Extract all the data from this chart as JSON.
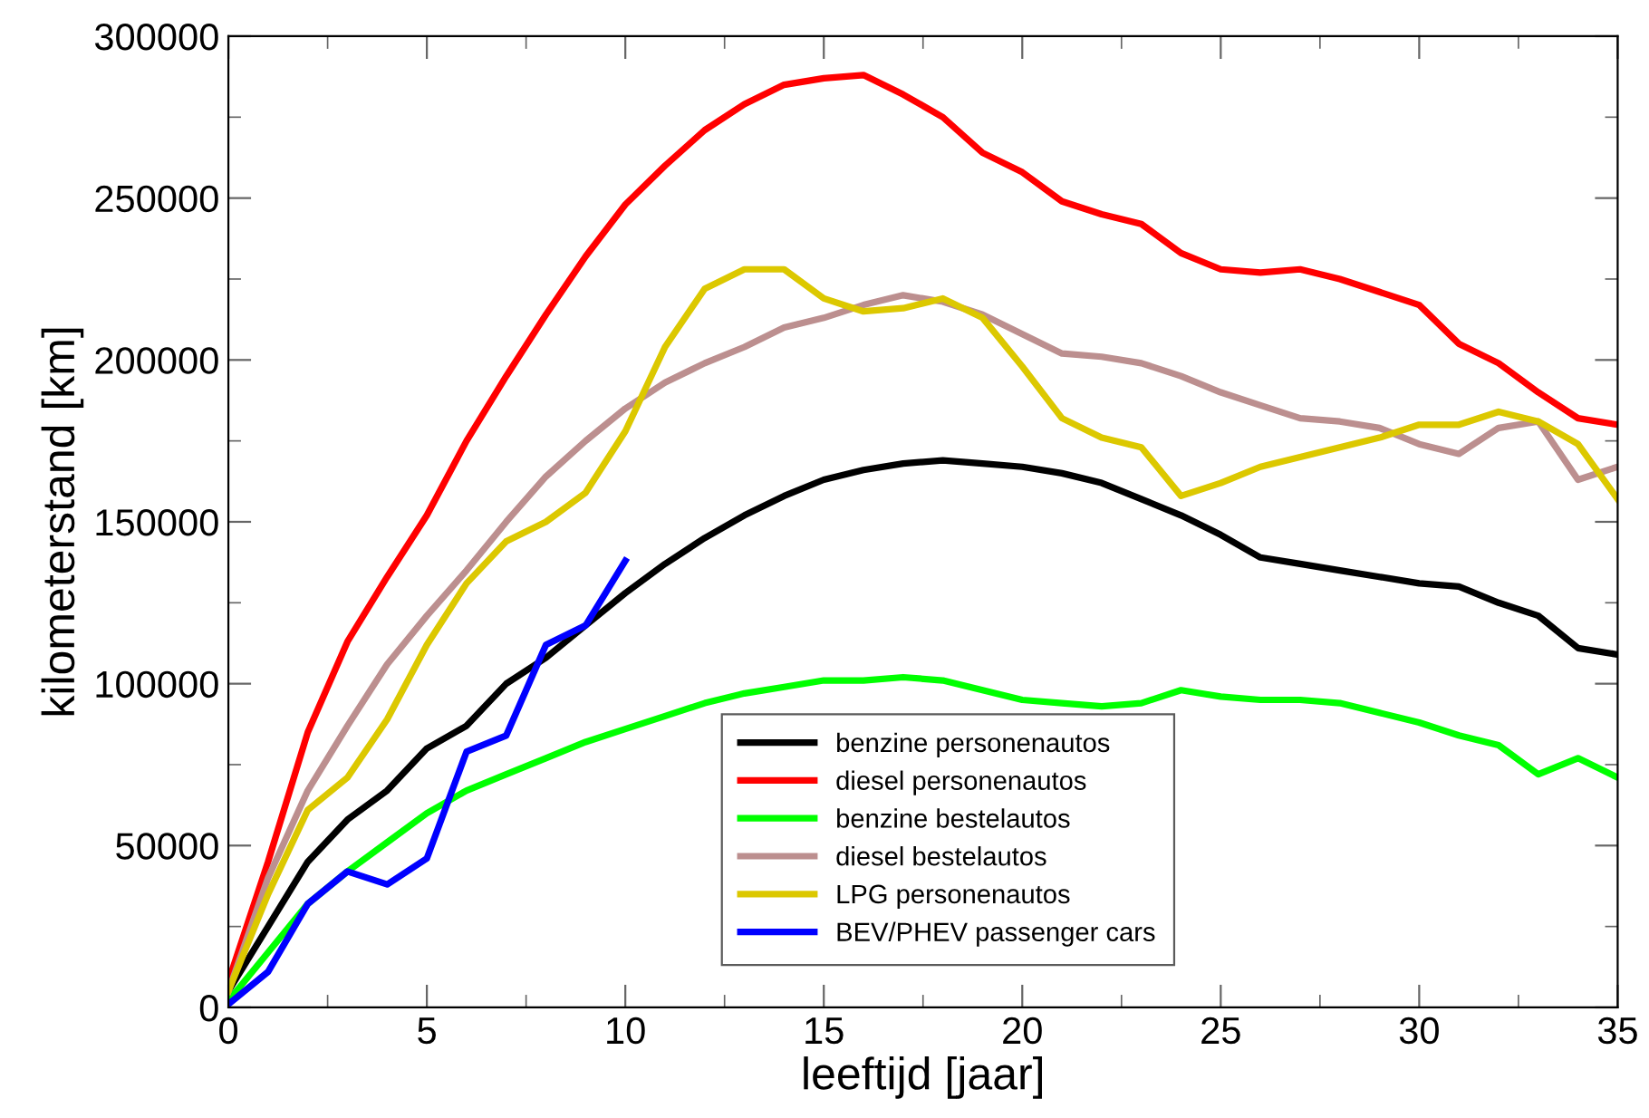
{
  "chart_data": {
    "type": "line",
    "xlabel": "leeftijd [jaar]",
    "ylabel": "kilometerstand [km]",
    "x": [
      0,
      1,
      2,
      3,
      4,
      5,
      6,
      7,
      8,
      9,
      10,
      11,
      12,
      13,
      14,
      15,
      16,
      17,
      18,
      19,
      20,
      21,
      22,
      23,
      24,
      25,
      26,
      27,
      28,
      29,
      30,
      31,
      32,
      33,
      34,
      35
    ],
    "xlim": [
      0,
      35
    ],
    "xticks": [
      0,
      5,
      10,
      15,
      20,
      25,
      30,
      35
    ],
    "ylim": [
      0,
      300000
    ],
    "yticks": [
      0,
      50000,
      100000,
      150000,
      200000,
      250000,
      300000
    ],
    "grid": false,
    "legend": "bottom",
    "marker": "none",
    "line_style": "solid",
    "series": [
      {
        "name": "benzine personenautos",
        "color": "#000000",
        "values": [
          5000,
          25000,
          45000,
          58000,
          67000,
          80000,
          87000,
          100000,
          108000,
          118000,
          128000,
          137000,
          145000,
          152000,
          158000,
          163000,
          166000,
          168000,
          169000,
          168000,
          167000,
          165000,
          162000,
          157000,
          152000,
          146000,
          139000,
          137000,
          135000,
          133000,
          131000,
          130000,
          125000,
          121000,
          111000,
          109000
        ]
      },
      {
        "name": "diesel personenautos",
        "color": "#ff0000",
        "values": [
          8000,
          45000,
          85000,
          113000,
          133000,
          152000,
          175000,
          195000,
          214000,
          232000,
          248000,
          260000,
          271000,
          279000,
          285000,
          287000,
          288000,
          282000,
          275000,
          264000,
          258000,
          249000,
          245000,
          242000,
          233000,
          228000,
          227000,
          228000,
          225000,
          221000,
          217000,
          205000,
          199000,
          190000,
          182000,
          180000
        ]
      },
      {
        "name": "benzine bestelautos",
        "color": "#00ff00",
        "values": [
          2000,
          17000,
          32000,
          42000,
          51000,
          60000,
          67000,
          72000,
          77000,
          82000,
          86000,
          90000,
          94000,
          97000,
          99000,
          101000,
          101000,
          102000,
          101000,
          98000,
          95000,
          94000,
          93000,
          94000,
          98000,
          96000,
          95000,
          95000,
          94000,
          91000,
          88000,
          84000,
          81000,
          72000,
          77000,
          71000
        ]
      },
      {
        "name": "diesel bestelautos",
        "color": "#bc8f8f",
        "values": [
          5000,
          40000,
          67000,
          87000,
          106000,
          121000,
          135000,
          150000,
          164000,
          175000,
          185000,
          193000,
          199000,
          204000,
          210000,
          213000,
          217000,
          220000,
          218000,
          214000,
          208000,
          202000,
          201000,
          199000,
          195000,
          190000,
          186000,
          182000,
          181000,
          179000,
          174000,
          171000,
          179000,
          181000,
          163000,
          167000
        ]
      },
      {
        "name": "LPG personenautos",
        "color": "#dcc800",
        "values": [
          5000,
          35000,
          61000,
          71000,
          89000,
          112000,
          131000,
          144000,
          150000,
          159000,
          178000,
          204000,
          222000,
          228000,
          228000,
          219000,
          215000,
          216000,
          219000,
          213000,
          198000,
          182000,
          176000,
          173000,
          158000,
          162000,
          167000,
          170000,
          173000,
          176000,
          180000,
          180000,
          184000,
          181000,
          174000,
          157000
        ]
      },
      {
        "name": "BEV/PHEV passenger cars",
        "color": "#0000ff",
        "x": [
          0,
          1,
          2,
          3,
          4,
          5,
          6,
          7,
          8,
          9,
          10
        ],
        "values": [
          1000,
          11000,
          32000,
          42000,
          38000,
          46000,
          79000,
          84000,
          112000,
          118000,
          138000
        ]
      }
    ]
  }
}
